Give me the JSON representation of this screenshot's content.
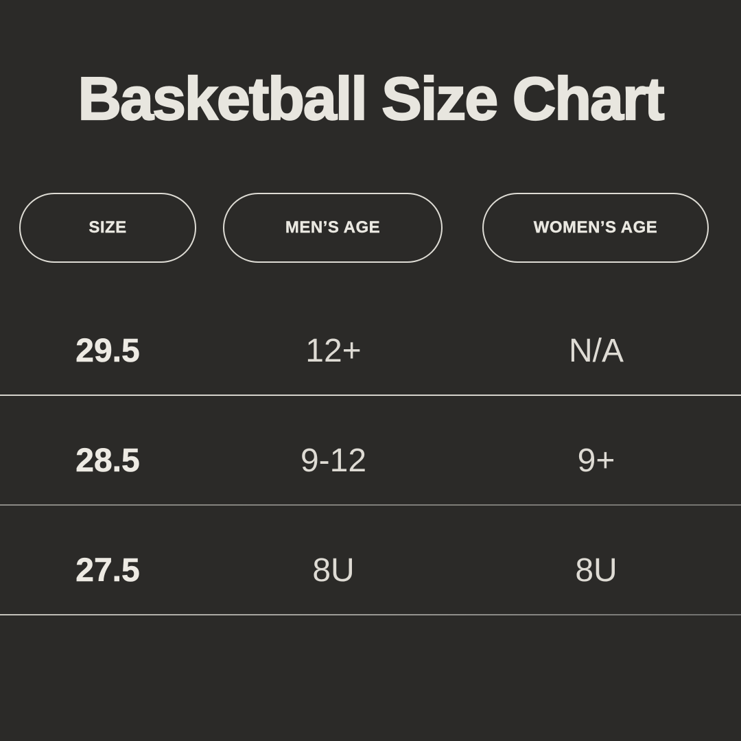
{
  "colors": {
    "background": "#2b2a28",
    "text_primary": "#e8e6df",
    "text_secondary": "#dedbd4",
    "pill_border": "#dedcd5",
    "divider_light": "#d5d3cc",
    "divider_gray": "#757470"
  },
  "chart_data": {
    "type": "table",
    "title": "Basketball Size Chart",
    "columns": [
      "SIZE",
      "MEN’S AGE",
      "WOMEN’S AGE"
    ],
    "rows": [
      [
        "29.5",
        "12+",
        "N/A"
      ],
      [
        "28.5",
        "9-12",
        "9+"
      ],
      [
        "27.5",
        "8U",
        "8U"
      ]
    ]
  }
}
